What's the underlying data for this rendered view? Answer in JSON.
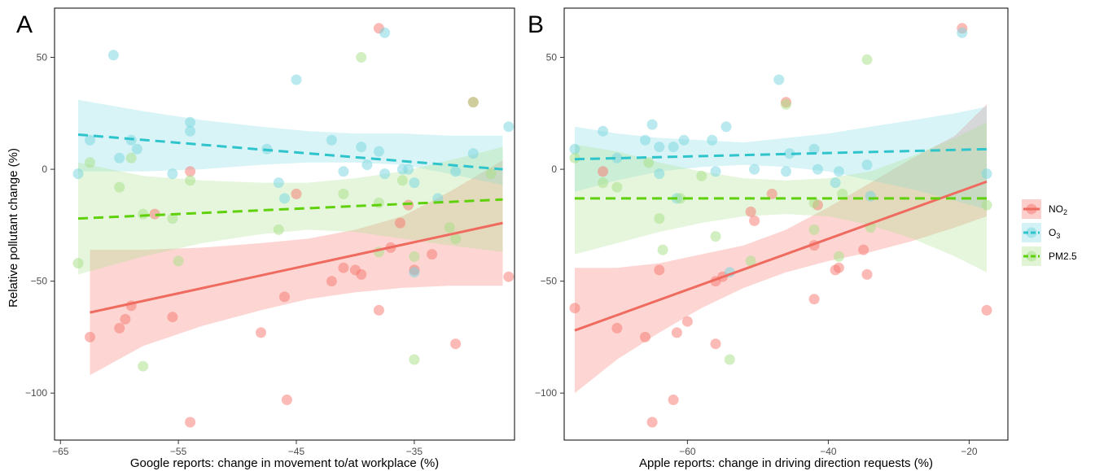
{
  "ylabel": "Relative pollutant change (%)",
  "legend": {
    "position": "right",
    "items": [
      {
        "label": "NO",
        "sub": "2",
        "color": "#F8766D",
        "linestyle": "solid"
      },
      {
        "label": "O",
        "sub": "3",
        "color": "#2EC4CC",
        "linestyle": "dashed"
      },
      {
        "label": "PM2.5",
        "sub": "",
        "color": "#5FD10A",
        "linestyle": "dashed"
      }
    ]
  },
  "colors": {
    "no2_point": "#F8766D",
    "no2_band": "#F8766D",
    "no2_line": "#EF6B5F",
    "o3_point": "#75D5E0",
    "o3_band": "#7DD9E3",
    "o3_line": "#2EC4CC",
    "pm_point": "#A6E084",
    "pm_band": "#A8E08A",
    "pm_line": "#5FD10A"
  },
  "chart_data": [
    {
      "panel_label": "A",
      "type": "scatter",
      "title": "",
      "xlabel": "Google reports: change in movement to/at workplace (%)",
      "ylabel": "Relative pollutant change (%)",
      "xlim": [
        -65.5,
        -26.5
      ],
      "ylim": [
        -121,
        72
      ],
      "xticks": [
        -65,
        -55,
        -45,
        -35
      ],
      "yticks": [
        50,
        0,
        -50,
        -100
      ],
      "grid": false,
      "series": [
        {
          "name": "NO2",
          "key": "no2",
          "points": [
            [
              -62.5,
              -75
            ],
            [
              -60,
              -71
            ],
            [
              -59.5,
              -67
            ],
            [
              -59,
              -61
            ],
            [
              -57,
              -20
            ],
            [
              -55.5,
              -66
            ],
            [
              -54,
              -1
            ],
            [
              -54,
              -113
            ],
            [
              -48,
              -73
            ],
            [
              -46,
              -57
            ],
            [
              -45.8,
              -103
            ],
            [
              -45,
              -11
            ],
            [
              -42,
              -50
            ],
            [
              -41,
              -44
            ],
            [
              -40,
              -45
            ],
            [
              -39.5,
              -47
            ],
            [
              -38,
              63
            ],
            [
              -38,
              -63
            ],
            [
              -37,
              -35
            ],
            [
              -36.2,
              -24
            ],
            [
              -35.5,
              -16
            ],
            [
              -35,
              -45
            ],
            [
              -33.5,
              -38
            ],
            [
              -31.5,
              -78
            ],
            [
              -30,
              30
            ],
            [
              -27,
              -48
            ]
          ],
          "fit": {
            "x": [
              -62.5,
              -27.5
            ],
            "y": [
              -64,
              -24
            ]
          },
          "band": {
            "x": [
              -62.5,
              -58,
              -53,
              -48,
              -44,
              -40,
              -36,
              -32,
              -27.5
            ],
            "lower": [
              -92,
              -79,
              -70,
              -63,
              -58,
              -55,
              -53,
              -52,
              -52
            ],
            "upper": [
              -36,
              -36,
              -35,
              -33,
              -31,
              -27,
              -21,
              -10,
              4
            ]
          }
        },
        {
          "name": "O3",
          "key": "o3",
          "points": [
            [
              -63.5,
              -2
            ],
            [
              -62.5,
              13
            ],
            [
              -60.5,
              51
            ],
            [
              -60,
              5
            ],
            [
              -59,
              13
            ],
            [
              -58.5,
              9
            ],
            [
              -55.5,
              -2
            ],
            [
              -54,
              21
            ],
            [
              -54,
              17
            ],
            [
              -47.5,
              9
            ],
            [
              -46.5,
              -6
            ],
            [
              -46,
              -13
            ],
            [
              -45,
              40
            ],
            [
              -42,
              13
            ],
            [
              -41,
              -1
            ],
            [
              -39.5,
              10
            ],
            [
              -39,
              2
            ],
            [
              -38,
              8
            ],
            [
              -37.5,
              61
            ],
            [
              -37.5,
              -2
            ],
            [
              -36,
              0
            ],
            [
              -35.5,
              0
            ],
            [
              -35,
              -6
            ],
            [
              -35,
              -46
            ],
            [
              -33,
              -13
            ],
            [
              -31.5,
              -1
            ],
            [
              -30,
              7
            ],
            [
              -27,
              19
            ]
          ],
          "fit": {
            "x": [
              -63.5,
              -27.5
            ],
            "y": [
              15.5,
              0
            ]
          },
          "band": {
            "x": [
              -63.5,
              -58,
              -53,
              -48,
              -44,
              -40,
              -36,
              -32,
              -27.5
            ],
            "lower": [
              -1,
              -1,
              0,
              2,
              3,
              3,
              2,
              -2,
              -7
            ],
            "upper": [
              31,
              26,
              22,
              19,
              17,
              16,
              16,
              15,
              15
            ]
          }
        },
        {
          "name": "PM2.5",
          "key": "pm",
          "points": [
            [
              -63.5,
              -42
            ],
            [
              -62.5,
              3
            ],
            [
              -60,
              -8
            ],
            [
              -59,
              5
            ],
            [
              -58,
              -20
            ],
            [
              -58,
              -88
            ],
            [
              -55.5,
              -22
            ],
            [
              -55,
              -41
            ],
            [
              -54,
              -5
            ],
            [
              -46.5,
              -27
            ],
            [
              -41,
              -11
            ],
            [
              -39.5,
              50
            ],
            [
              -38,
              -37
            ],
            [
              -38,
              -15
            ],
            [
              -36,
              -5
            ],
            [
              -35,
              -39
            ],
            [
              -35,
              -85
            ],
            [
              -32,
              -26
            ],
            [
              -31.5,
              -31
            ],
            [
              -30,
              30
            ],
            [
              -28.5,
              -2
            ]
          ],
          "fit": {
            "x": [
              -63.5,
              -27.5
            ],
            "y": [
              -22,
              -13.5
            ]
          },
          "band": {
            "x": [
              -63.5,
              -58,
              -53,
              -48,
              -44,
              -40,
              -36,
              -32,
              -27.5
            ],
            "lower": [
              -47,
              -39,
              -33,
              -29,
              -27,
              -28,
              -31,
              -34,
              -37
            ],
            "upper": [
              3,
              -3,
              -5,
              -6,
              -6,
              -4,
              -1,
              4,
              10
            ]
          }
        }
      ]
    },
    {
      "panel_label": "B",
      "type": "scatter",
      "title": "",
      "xlabel": "Apple reports: change in driving direction requests (%)",
      "ylabel": "",
      "xlim": [
        -77.5,
        -14.5
      ],
      "ylim": [
        -121,
        72
      ],
      "xticks": [
        -60,
        -40,
        -20
      ],
      "yticks": [
        50,
        0,
        -50,
        -100
      ],
      "grid": false,
      "series": [
        {
          "name": "NO2",
          "key": "no2",
          "points": [
            [
              -76,
              -62
            ],
            [
              -72,
              -1
            ],
            [
              -70,
              -71
            ],
            [
              -66,
              -75
            ],
            [
              -65,
              -113
            ],
            [
              -64,
              -45
            ],
            [
              -62,
              -103
            ],
            [
              -61.5,
              -73
            ],
            [
              -60,
              -68
            ],
            [
              -56,
              -50
            ],
            [
              -56,
              -78
            ],
            [
              -55,
              -48
            ],
            [
              -51,
              -19
            ],
            [
              -50.5,
              -23
            ],
            [
              -48,
              -11
            ],
            [
              -46,
              30
            ],
            [
              -42,
              -58
            ],
            [
              -41.5,
              -16
            ],
            [
              -42,
              -34
            ],
            [
              -39,
              -45
            ],
            [
              -38.5,
              -44
            ],
            [
              -35,
              -36
            ],
            [
              -34.5,
              -47
            ],
            [
              -21,
              63
            ],
            [
              -17.5,
              -63
            ]
          ],
          "fit": {
            "x": [
              -76,
              -17.5
            ],
            "y": [
              -72,
              -5.5
            ]
          },
          "band": {
            "x": [
              -76,
              -70,
              -64,
              -58,
              -52,
              -46,
              -40,
              -34,
              -28,
              -22,
              -17.5
            ],
            "lower": [
              -100,
              -85,
              -73,
              -62,
              -53,
              -46,
              -41,
              -37,
              -32,
              -26,
              -21
            ],
            "upper": [
              -44,
              -44,
              -42,
              -38,
              -34,
              -27,
              -17,
              -6,
              5,
              15,
              29
            ]
          }
        },
        {
          "name": "O3",
          "key": "o3",
          "points": [
            [
              -76,
              9
            ],
            [
              -72,
              17
            ],
            [
              -70,
              5
            ],
            [
              -66,
              13
            ],
            [
              -65,
              20
            ],
            [
              -64,
              10
            ],
            [
              -64,
              -2
            ],
            [
              -62,
              10
            ],
            [
              -61.5,
              -13
            ],
            [
              -60.5,
              13
            ],
            [
              -56.5,
              13
            ],
            [
              -56,
              -1
            ],
            [
              -54.5,
              19
            ],
            [
              -54,
              -46
            ],
            [
              -50.5,
              0
            ],
            [
              -47,
              40
            ],
            [
              -46,
              -1
            ],
            [
              -45.5,
              7
            ],
            [
              -42,
              9
            ],
            [
              -41.5,
              0
            ],
            [
              -39,
              -6
            ],
            [
              -38.5,
              -1
            ],
            [
              -34.5,
              2
            ],
            [
              -34,
              -12
            ],
            [
              -21,
              61
            ],
            [
              -17.5,
              -2
            ]
          ],
          "fit": {
            "x": [
              -76,
              -17.5
            ],
            "y": [
              4.5,
              9
            ]
          },
          "band": {
            "x": [
              -76,
              -70,
              -64,
              -58,
              -52,
              -46,
              -40,
              -34,
              -28,
              -22,
              -17.5
            ],
            "lower": [
              -10,
              -5,
              -1,
              1,
              2,
              1,
              -1,
              -5,
              -9,
              -14,
              -18
            ],
            "upper": [
              19,
              16,
              14,
              13,
              12,
              14,
              16,
              19,
              22,
              25,
              28
            ]
          }
        },
        {
          "name": "PM2.5",
          "key": "pm",
          "points": [
            [
              -76,
              5
            ],
            [
              -72,
              -6
            ],
            [
              -70,
              -8
            ],
            [
              -65.5,
              3
            ],
            [
              -64,
              -22
            ],
            [
              -63.5,
              -36
            ],
            [
              -61,
              -13
            ],
            [
              -58,
              -3
            ],
            [
              -56,
              -30
            ],
            [
              -54,
              -85
            ],
            [
              -51,
              -41
            ],
            [
              -46,
              29
            ],
            [
              -42,
              -27
            ],
            [
              -42,
              -15
            ],
            [
              -38.5,
              -39
            ],
            [
              -38,
              -11
            ],
            [
              -34.5,
              49
            ],
            [
              -34,
              -26
            ],
            [
              -17.5,
              -16
            ]
          ],
          "fit": {
            "x": [
              -76,
              -17.5
            ],
            "y": [
              -13,
              -13
            ]
          },
          "band": {
            "x": [
              -76,
              -70,
              -64,
              -58,
              -52,
              -46,
              -40,
              -34,
              -28,
              -22,
              -17.5
            ],
            "lower": [
              -38,
              -33,
              -28,
              -24,
              -21,
              -20,
              -21,
              -25,
              -31,
              -39,
              -46
            ],
            "upper": [
              11,
              8,
              3,
              -1,
              -4,
              -5,
              -4,
              -1,
              6,
              14,
              21
            ]
          }
        }
      ]
    }
  ]
}
